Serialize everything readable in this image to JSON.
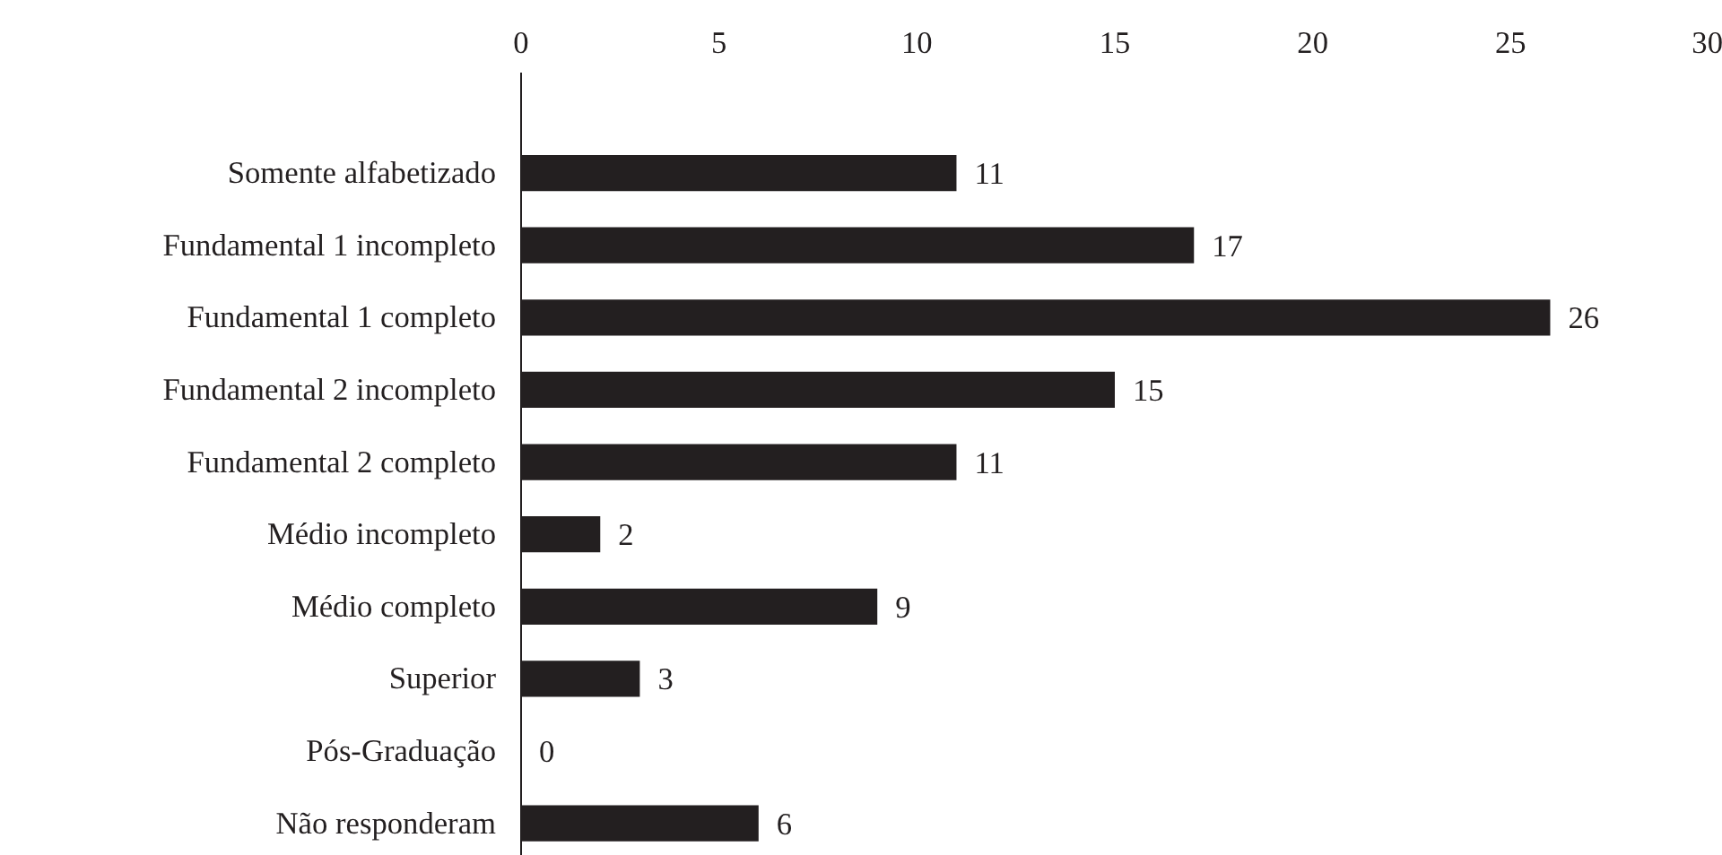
{
  "chart_data": {
    "type": "bar",
    "orientation": "horizontal",
    "categories": [
      "Somente alfabetizado",
      "Fundamental 1 incompleto",
      "Fundamental 1 completo",
      "Fundamental 2 incompleto",
      "Fundamental 2 completo",
      "Médio incompleto",
      "Médio completo",
      "Superior",
      "Pós-Graduação",
      "Não responderam"
    ],
    "values": [
      11,
      17,
      26,
      15,
      11,
      2,
      9,
      3,
      0,
      6
    ],
    "color": "#231f20",
    "xlim": [
      0,
      30
    ],
    "xticks": [
      0,
      5,
      10,
      15,
      20,
      25,
      30
    ],
    "data_labels": true
  }
}
